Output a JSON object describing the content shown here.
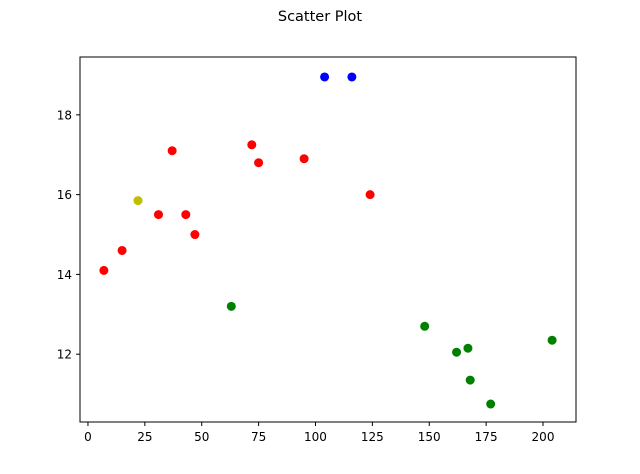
{
  "chart_data": {
    "type": "scatter",
    "title": "Scatter Plot",
    "xlabel": "",
    "ylabel": "",
    "xlim": [
      -3.5,
      214.5
    ],
    "ylim": [
      10.3,
      19.45
    ],
    "xticks": [
      0,
      25,
      50,
      75,
      100,
      125,
      150,
      175,
      200
    ],
    "yticks": [
      12,
      14,
      16,
      18
    ],
    "grid": false,
    "legend": "none",
    "colors": {
      "red": "#ff0000",
      "blue": "#0000ff",
      "green": "#008000",
      "olive": "#bfbf00"
    },
    "series": [
      {
        "color": "#ff0000",
        "points": [
          {
            "x": 7,
            "y": 14.1
          },
          {
            "x": 15,
            "y": 14.6
          },
          {
            "x": 31,
            "y": 15.5
          },
          {
            "x": 37,
            "y": 17.1
          },
          {
            "x": 43,
            "y": 15.5
          },
          {
            "x": 47,
            "y": 15.0
          },
          {
            "x": 72,
            "y": 17.25
          },
          {
            "x": 75,
            "y": 16.8
          },
          {
            "x": 95,
            "y": 16.9
          },
          {
            "x": 124,
            "y": 16.0
          }
        ]
      },
      {
        "color": "#0000ff",
        "points": [
          {
            "x": 104,
            "y": 18.95
          },
          {
            "x": 116,
            "y": 18.95
          }
        ]
      },
      {
        "color": "#008000",
        "points": [
          {
            "x": 63,
            "y": 13.2
          },
          {
            "x": 148,
            "y": 12.7
          },
          {
            "x": 162,
            "y": 12.05
          },
          {
            "x": 167,
            "y": 12.15
          },
          {
            "x": 168,
            "y": 11.35
          },
          {
            "x": 177,
            "y": 10.75
          },
          {
            "x": 204,
            "y": 12.35
          }
        ]
      },
      {
        "color": "#bfbf00",
        "points": [
          {
            "x": 22,
            "y": 15.85
          }
        ]
      }
    ]
  }
}
